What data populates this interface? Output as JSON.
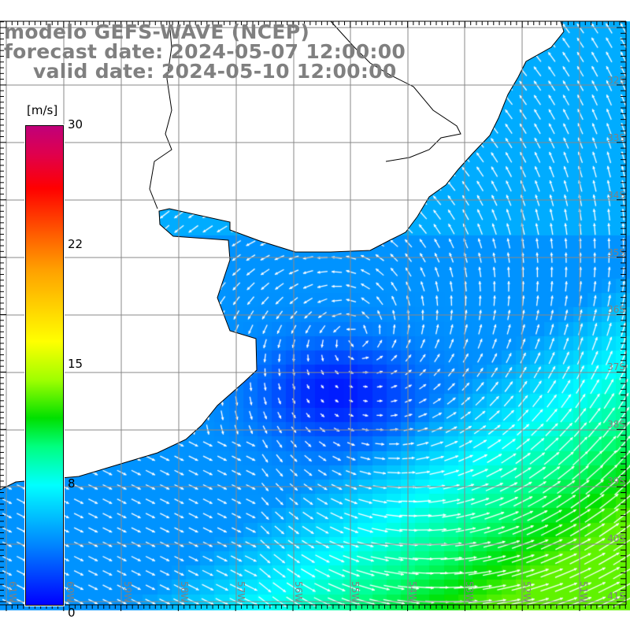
{
  "title": {
    "model": "modelo GEFS-WAVE (NCEP)",
    "forecast": "forecast date: 2024-05-07 12:00:00",
    "valid": "valid date: 2024-05-10 12:00:00"
  },
  "colorbar": {
    "unit": "[m/s]",
    "ticks": [
      "30",
      "22",
      "15",
      "8",
      "0"
    ],
    "colors": [
      "#0000ff",
      "#00ffff",
      "#00e000",
      "#ffff00",
      "#ff0000",
      "#c0007a"
    ]
  },
  "lat_labels": [
    "32S",
    "33S",
    "34S",
    "35S",
    "36S",
    "37S",
    "38S",
    "39S",
    "40S",
    "41S"
  ],
  "lon_labels": [
    "61W",
    "60W",
    "59W",
    "58W",
    "57W",
    "56W",
    "55W",
    "54W",
    "53W",
    "52W",
    "51W"
  ]
}
